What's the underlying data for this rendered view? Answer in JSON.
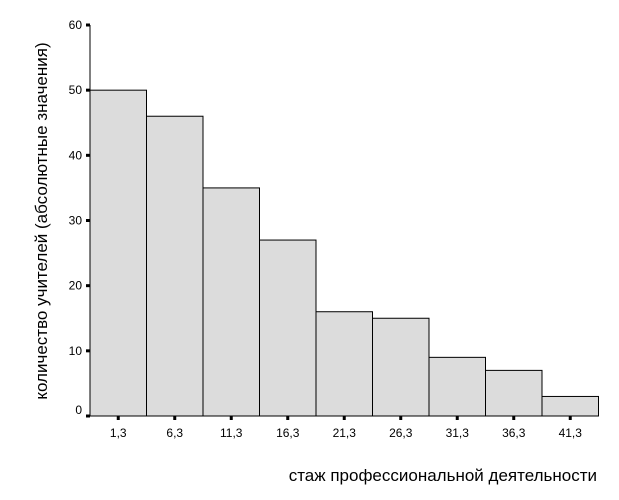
{
  "chart_data": {
    "type": "bar",
    "title": "",
    "xlabel": "стаж профессиональной деятельности",
    "ylabel": "количество учителей (абсолютные значения)",
    "categories": [
      "1,3",
      "6,3",
      "11,3",
      "16,3",
      "21,3",
      "26,3",
      "31,3",
      "36,3",
      "41,3"
    ],
    "values": [
      50,
      46,
      35,
      27,
      16,
      15,
      9,
      7,
      3
    ],
    "ylim": [
      0,
      60
    ],
    "yticks": [
      "0",
      "10",
      "20",
      "30",
      "40",
      "50",
      "60"
    ],
    "grid": false,
    "legend": "none",
    "bar_color": "#dcdcdc",
    "bar_edge_color": "#000000"
  }
}
